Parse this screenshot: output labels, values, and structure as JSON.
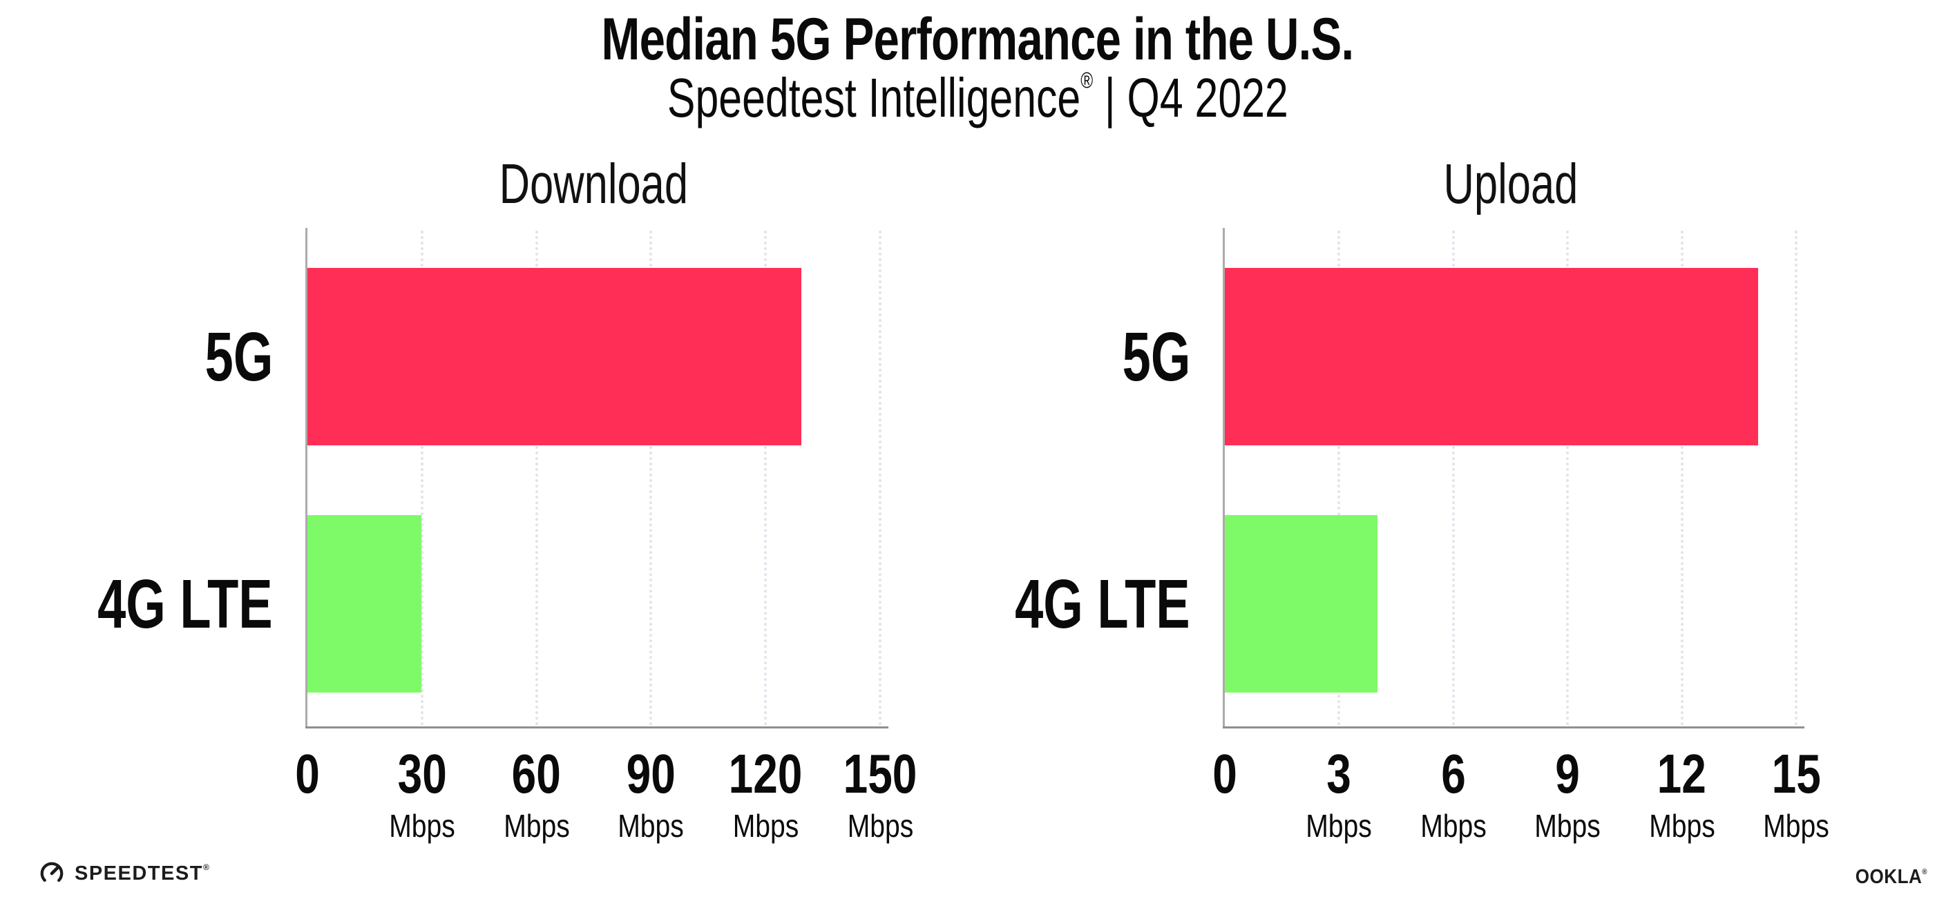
{
  "header": {
    "title": "Median 5G Performance in the U.S.",
    "subtitle_brand": "Speedtest Intelligence",
    "subtitle_reg": "®",
    "subtitle_rest": "| Q4 2022"
  },
  "footer": {
    "speedtest_text": "SPEEDTEST",
    "speedtest_reg": "®",
    "ookla_text": "OOKLA",
    "ookla_reg": "®"
  },
  "colors": {
    "bar_5g_pink": "#FF2E57",
    "bar_4g_green": "#7EFA68",
    "gridline": "#E2E2EC",
    "axis": "#8F8F8F",
    "text": "#0A0A0A"
  },
  "chart_data": [
    {
      "type": "bar",
      "orientation": "horizontal",
      "title": "Download",
      "categories": [
        "5G",
        "4G LTE"
      ],
      "values": [
        129.4,
        29.9
      ],
      "bar_colors": [
        "#FF2E57",
        "#7EFA68"
      ],
      "xlim": [
        0,
        150
      ],
      "xticks": [
        0,
        30,
        60,
        90,
        120,
        150
      ],
      "tick_unit": "Mbps",
      "grid": "dotted-vertical",
      "legend": "none"
    },
    {
      "type": "bar",
      "orientation": "horizontal",
      "title": "Upload",
      "categories": [
        "5G",
        "4G LTE"
      ],
      "values": [
        14.0,
        4.0
      ],
      "bar_colors": [
        "#FF2E57",
        "#7EFA68"
      ],
      "xlim": [
        0,
        15
      ],
      "xticks": [
        0,
        3,
        6,
        9,
        12,
        15
      ],
      "tick_unit": "Mbps",
      "grid": "dotted-vertical",
      "legend": "none"
    }
  ]
}
